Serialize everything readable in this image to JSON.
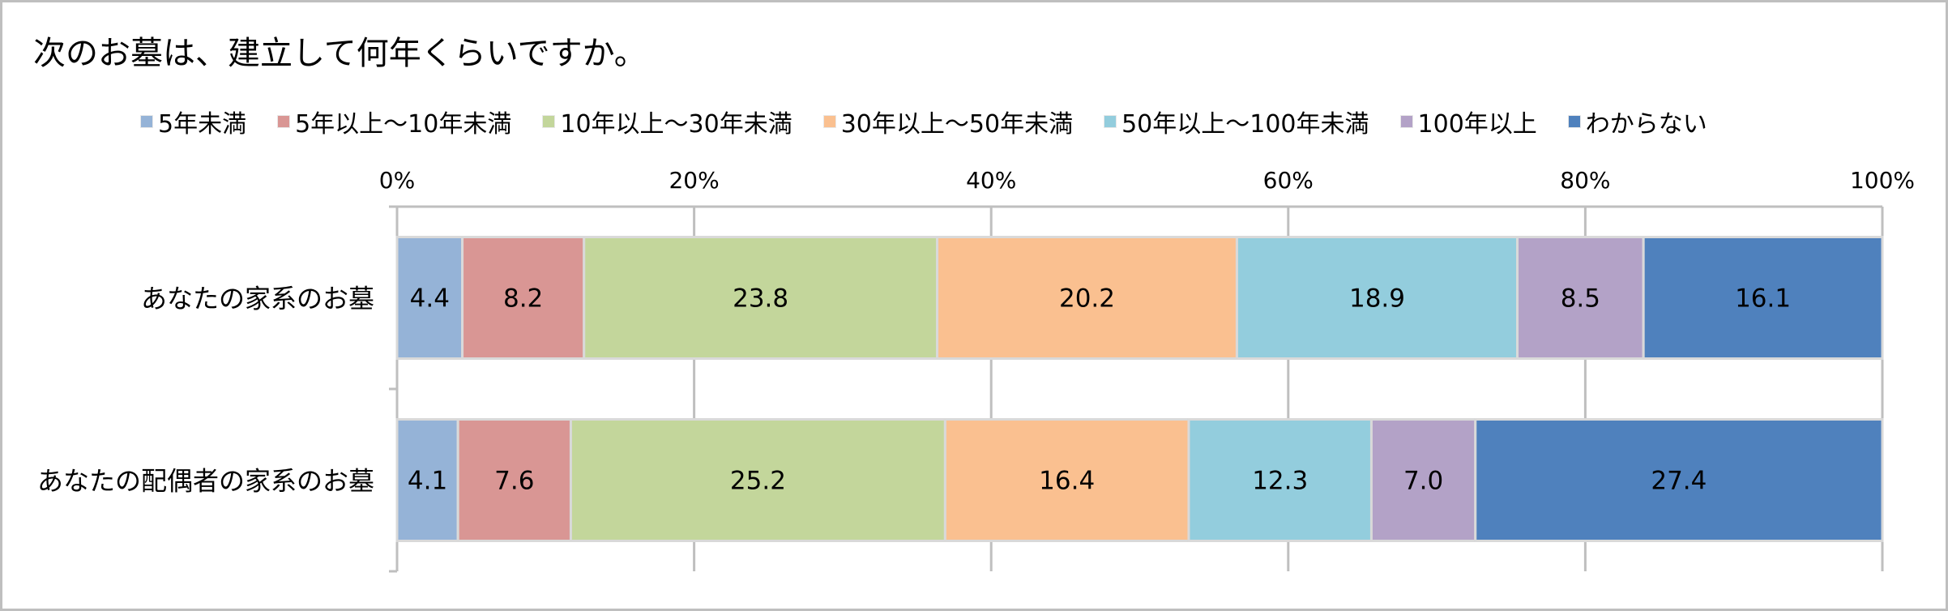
{
  "chart_data": {
    "type": "bar",
    "orientation": "horizontal",
    "stacked": "percent",
    "title": "次のお墓は、建立して何年くらいですか。",
    "categories": [
      "あなたの家系のお墓",
      "あなたの配偶者の家系のお墓"
    ],
    "series": [
      {
        "name": "5年未満",
        "color": "#95B3D7",
        "values": [
          4.4,
          4.1
        ]
      },
      {
        "name": "5年以上～10年未満",
        "color": "#D99694",
        "values": [
          8.2,
          7.6
        ]
      },
      {
        "name": "10年以上～30年未満",
        "color": "#C3D69B",
        "values": [
          23.8,
          25.2
        ]
      },
      {
        "name": "30年以上～50年未満",
        "color": "#FAC090",
        "values": [
          20.2,
          16.4
        ]
      },
      {
        "name": "50年以上～100年未満",
        "color": "#93CDDD",
        "values": [
          18.9,
          12.3
        ]
      },
      {
        "name": "100年以上",
        "color": "#B3A2C7",
        "values": [
          8.5,
          7.0
        ]
      },
      {
        "name": "わからない",
        "color": "#4F81BD",
        "values": [
          16.1,
          27.4
        ]
      }
    ],
    "value_labels": [
      [
        "4.4",
        "8.2",
        "23.8",
        "20.2",
        "18.9",
        "8.5",
        "16.1"
      ],
      [
        "4.1",
        "7.6",
        "25.2",
        "16.4",
        "12.3",
        "7.0",
        "27.4"
      ]
    ],
    "xlim": [
      0,
      100
    ],
    "x_ticks": [
      "0%",
      "20%",
      "40%",
      "60%",
      "80%",
      "100%"
    ],
    "grid": true,
    "legend_position": "top"
  }
}
